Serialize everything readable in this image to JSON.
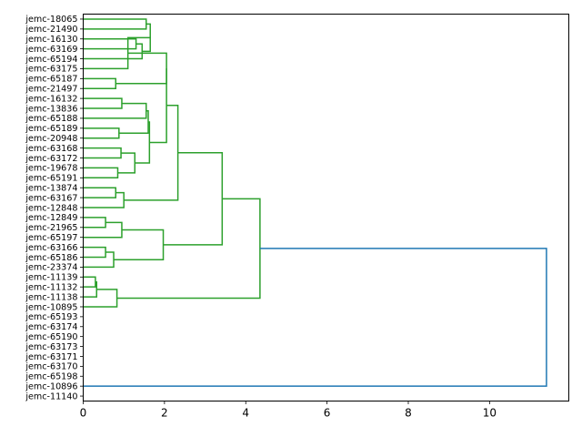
{
  "chart_data": {
    "type": "dendrogram",
    "orientation": "left",
    "xlim": [
      0,
      11.95
    ],
    "xticks": [
      0,
      2,
      4,
      6,
      8,
      10
    ],
    "xtick_labels": [
      "0",
      "2",
      "4",
      "6",
      "8",
      "10"
    ],
    "leaves": [
      "jemc-18065",
      "jemc-21490",
      "jemc-16130",
      "jemc-63169",
      "jemc-65194",
      "jemc-63175",
      "jemc-65187",
      "jemc-21497",
      "jemc-16132",
      "jemc-13836",
      "jemc-65188",
      "jemc-65189",
      "jemc-20948",
      "jemc-63168",
      "jemc-63172",
      "jemc-19678",
      "jemc-65191",
      "jemc-13874",
      "jemc-63167",
      "jemc-12848",
      "jemc-12849",
      "jemc-21965",
      "jemc-65197",
      "jemc-63166",
      "jemc-65186",
      "jemc-23374",
      "jemc-11139",
      "jemc-11132",
      "jemc-11138",
      "jemc-10895",
      "jemc-65193",
      "jemc-63174",
      "jemc-65190",
      "jemc-63173",
      "jemc-63171",
      "jemc-63170",
      "jemc-65198",
      "jemc-10896",
      "jemc-11140"
    ],
    "merges": [
      {
        "id": "n1",
        "a": "L3",
        "b": "L4",
        "h": 1.3
      },
      {
        "id": "n2",
        "a": "n1",
        "b": "L5",
        "h": 1.45
      },
      {
        "id": "n3",
        "a": "L1",
        "b": "L2",
        "h": 1.55
      },
      {
        "id": "n4",
        "a": "n3",
        "b": "n2",
        "h": 1.65
      },
      {
        "id": "n5",
        "a": "n4",
        "b": "L6",
        "h": 1.1
      },
      {
        "id": "n6",
        "a": "L7",
        "b": "L8",
        "h": 0.8
      },
      {
        "id": "n7",
        "a": "n5",
        "b": "n6",
        "h": 2.05
      },
      {
        "id": "n8",
        "a": "L9",
        "b": "L10",
        "h": 0.95
      },
      {
        "id": "n9",
        "a": "n8",
        "b": "L11",
        "h": 1.55
      },
      {
        "id": "n10",
        "a": "L12",
        "b": "L13",
        "h": 0.88
      },
      {
        "id": "n11",
        "a": "n9",
        "b": "n10",
        "h": 1.6
      },
      {
        "id": "n12",
        "a": "L14",
        "b": "L15",
        "h": 0.93
      },
      {
        "id": "n13",
        "a": "L16",
        "b": "L17",
        "h": 0.85
      },
      {
        "id": "n14",
        "a": "n12",
        "b": "n13",
        "h": 1.27
      },
      {
        "id": "n15",
        "a": "n11",
        "b": "n14",
        "h": 1.63
      },
      {
        "id": "n16",
        "a": "n7",
        "b": "n15",
        "h": 2.05
      },
      {
        "id": "n17",
        "a": "L18",
        "b": "L19",
        "h": 0.8
      },
      {
        "id": "n18",
        "a": "n17",
        "b": "L20",
        "h": 1.0
      },
      {
        "id": "n19",
        "a": "n16",
        "b": "n18",
        "h": 2.33
      },
      {
        "id": "n20",
        "a": "L21",
        "b": "L22",
        "h": 0.55
      },
      {
        "id": "n21",
        "a": "n20",
        "b": "L23",
        "h": 0.95
      },
      {
        "id": "n22",
        "a": "L24",
        "b": "L25",
        "h": 0.55
      },
      {
        "id": "n23",
        "a": "n22",
        "b": "L26",
        "h": 0.75
      },
      {
        "id": "n24",
        "a": "n21",
        "b": "n23",
        "h": 1.97
      },
      {
        "id": "n25",
        "a": "n19",
        "b": "n24",
        "h": 3.42
      },
      {
        "id": "n26",
        "a": "L27",
        "b": "L28",
        "h": 0.3
      },
      {
        "id": "n27",
        "a": "n26",
        "b": "L29",
        "h": 0.33
      },
      {
        "id": "n28",
        "a": "n27",
        "b": "L30",
        "h": 0.83
      },
      {
        "id": "n29",
        "a": "n25",
        "b": "n28",
        "h": 4.35
      },
      {
        "id": "n30",
        "a": "L38",
        "b": "n29",
        "h": 11.4
      }
    ],
    "colors": {
      "cluster": "#2ca02c",
      "above_threshold": "#1f77b4"
    },
    "blue_links": [
      "n30"
    ]
  }
}
